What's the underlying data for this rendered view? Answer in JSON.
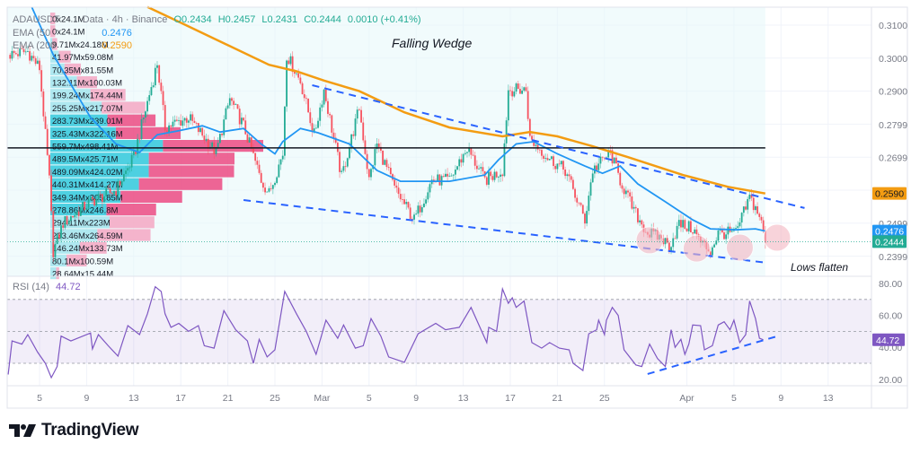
{
  "legend": {
    "symbol": "ADAUSDT",
    "source": "Data · 4h · Binance",
    "open": "O0.2434",
    "high": "H0.2457",
    "low": "L0.2431",
    "close": "C0.2444",
    "change": "0.0010 (+0.41%)",
    "ema50_label": "EMA (50",
    "ema50_value": "0.2476",
    "ema200_label": "EMA (200",
    "ema200_value": "0.2590",
    "rsi_label": "RSI (14)",
    "rsi_value": "44.72"
  },
  "annotations": {
    "wedge": "Falling Wedge",
    "lows": "Lows flatten"
  },
  "branding": {
    "name": "TradingView"
  },
  "colors": {
    "up": "#22ab94",
    "down": "#f7525f",
    "ema50": "#2196f3",
    "ema200": "#f39c12",
    "rsi": "#7e57c2",
    "trendline": "#2962ff",
    "level": "#131722",
    "vp_up": "#26c6da",
    "vp_down": "#ec407a",
    "vp_up_light": "#9fe3ec",
    "vp_down_light": "#f5a3bf",
    "circle": "#f4b6c2"
  },
  "chart_data": {
    "type": "candlestick",
    "timeframe": "4h",
    "price_axis": {
      "ticks": [
        "0.3100",
        "0.3000",
        "0.2900",
        "0.2799",
        "0.2699",
        "0.2399"
      ],
      "hidden_tick": "0.2499"
    },
    "time_axis": {
      "ticks": [
        "5",
        "9",
        "13",
        "17",
        "21",
        "25",
        "Mar",
        "5",
        "9",
        "13",
        "17",
        "21",
        "25",
        "Apr",
        "5",
        "9",
        "13"
      ],
      "tick_dates": [
        "Feb 5",
        "Feb 9",
        "Feb 13",
        "Feb 17",
        "Feb 21",
        "Feb 25",
        "Mar 1",
        "Mar 5",
        "Mar 9",
        "Mar 13",
        "Mar 17",
        "Mar 21",
        "Mar 25",
        "Apr 1",
        "Apr 5",
        "Apr 9",
        "Apr 13"
      ]
    },
    "price_labels": [
      {
        "text": "0.2590",
        "value": 0.259,
        "color": "#f39c12"
      },
      {
        "text": "0.2476",
        "value": 0.2476,
        "color": "#2196f3"
      },
      {
        "text": "0.2444",
        "value": 0.2444,
        "color": "#22ab94"
      }
    ],
    "price_path": [
      [
        "Feb 2 08:00",
        0.301
      ],
      [
        "Feb 4 00:00",
        0.302
      ],
      [
        "Feb 5 00:00",
        0.297
      ],
      [
        "Feb 5 20:00",
        0.263
      ],
      [
        "Feb 6 04:00",
        0.2415
      ],
      [
        "Feb 7 00:00",
        0.25
      ],
      [
        "Feb 9 08:00",
        0.2565
      ],
      [
        "Feb 11 12:00",
        0.26
      ],
      [
        "Feb 13 00:00",
        0.27
      ],
      [
        "Feb 15 00:00",
        0.2985
      ],
      [
        "Feb 15 16:00",
        0.279
      ],
      [
        "Feb 17 16:00",
        0.282
      ],
      [
        "Feb 20 00:00",
        0.2714
      ],
      [
        "Feb 21 04:00",
        0.2877
      ],
      [
        "Feb 22 08:00",
        0.2795
      ],
      [
        "Feb 23 20:00",
        0.263
      ],
      [
        "Feb 24 12:00",
        0.259
      ],
      [
        "Feb 25 16:00",
        0.271
      ],
      [
        "Feb 26 00:00",
        0.301
      ],
      [
        "Feb 27 04:00",
        0.293
      ],
      [
        "Feb 28 08:00",
        0.2768
      ],
      [
        "Mar 1 04:00",
        0.2904
      ],
      [
        "Mar 2 16:00",
        0.264
      ],
      [
        "Mar 4 04:00",
        0.285
      ],
      [
        "Mar 5 00:00",
        0.263
      ],
      [
        "Mar 5 16:00",
        0.2741
      ],
      [
        "Mar 7 04:00",
        0.2605
      ],
      [
        "Mar 8 20:00",
        0.251
      ],
      [
        "Mar 10 08:00",
        0.263
      ],
      [
        "Mar 11 20:00",
        0.263
      ],
      [
        "Mar 13 08:00",
        0.2727
      ],
      [
        "Mar 14 20:00",
        0.263
      ],
      [
        "Mar 16 08:00",
        0.266
      ],
      [
        "Mar 16 20:00",
        0.2904
      ],
      [
        "Mar 18 08:00",
        0.2904
      ],
      [
        "Mar 18 16:00",
        0.2755
      ],
      [
        "Mar 20 04:00",
        0.27
      ],
      [
        "Mar 21 16:00",
        0.266
      ],
      [
        "Mar 23 08:00",
        0.251
      ],
      [
        "Mar 24 00:00",
        0.266
      ],
      [
        "Mar 25 12:00",
        0.2714
      ],
      [
        "Mar 26 08:00",
        0.263
      ],
      [
        "Mar 27 12:00",
        0.2537
      ],
      [
        "Mar 28 16:00",
        0.247
      ],
      [
        "Mar 29 20:00",
        0.2456
      ],
      [
        "Mar 30 12:00",
        0.2429
      ],
      [
        "Mar 31 08:00",
        0.2497
      ],
      [
        "Apr 1 12:00",
        0.2483
      ],
      [
        "Apr 2 04:00",
        0.2442
      ],
      [
        "Apr 3 00:00",
        0.2415
      ],
      [
        "Apr 3 16:00",
        0.247
      ],
      [
        "Apr 5 04:00",
        0.247
      ],
      [
        "Apr 6 08:00",
        0.2578
      ],
      [
        "Apr 7 04:00",
        0.2524
      ],
      [
        "Apr 7 16:00",
        0.2444
      ]
    ],
    "ema50": [
      [
        "Feb 4 08:00",
        0.3155
      ],
      [
        "Feb 6 04:00",
        0.301
      ],
      [
        "Feb 9 08:00",
        0.282
      ],
      [
        "Feb 11 12:00",
        0.274
      ],
      [
        "Feb 13 12:00",
        0.2714
      ],
      [
        "Feb 15 00:00",
        0.2768
      ],
      [
        "Feb 16 20:00",
        0.278
      ],
      [
        "Feb 18 20:00",
        0.2795
      ],
      [
        "Feb 20 08:00",
        0.2776
      ],
      [
        "Feb 22 08:00",
        0.2787
      ],
      [
        "Feb 23 20:00",
        0.274
      ],
      [
        "Feb 25 00:00",
        0.271
      ],
      [
        "Feb 25 16:00",
        0.2747
      ],
      [
        "Feb 27 04:00",
        0.2787
      ],
      [
        "Feb 28 16:00",
        0.2774
      ],
      [
        "Mar 3 08:00",
        0.274
      ],
      [
        "Mar 5 16:00",
        0.266
      ],
      [
        "Mar 7 16:00",
        0.2627
      ],
      [
        "Mar 11 20:00",
        0.2627
      ],
      [
        "Mar 14 20:00",
        0.2646
      ],
      [
        "Mar 16 00:00",
        0.2692
      ],
      [
        "Mar 17 12:00",
        0.274
      ],
      [
        "Mar 19 00:00",
        0.2747
      ],
      [
        "Mar 21 00:00",
        0.271
      ],
      [
        "Mar 23 08:00",
        0.2673
      ],
      [
        "Mar 24 20:00",
        0.2651
      ],
      [
        "Mar 26 08:00",
        0.2673
      ],
      [
        "Mar 27 20:00",
        0.2619
      ],
      [
        "Mar 30 04:00",
        0.2565
      ],
      [
        "Apr 1 12:00",
        0.251
      ],
      [
        "Apr 3 00:00",
        0.2483
      ],
      [
        "Apr 5 04:00",
        0.248
      ],
      [
        "Apr 6 20:00",
        0.2483
      ],
      [
        "Apr 7 16:00",
        0.2476
      ]
    ],
    "ema200": [
      [
        "Feb 14 04:00",
        0.3155
      ],
      [
        "Feb 16 20:00",
        0.311
      ],
      [
        "Feb 20 16:00",
        0.3045
      ],
      [
        "Feb 24 12:00",
        0.298
      ],
      [
        "Feb 26 20:00",
        0.296
      ],
      [
        "Mar 1 04:00",
        0.2932
      ],
      [
        "Mar 4 04:00",
        0.29
      ],
      [
        "Mar 8 00:00",
        0.2836
      ],
      [
        "Mar 11 20:00",
        0.279
      ],
      [
        "Mar 16 08:00",
        0.2763
      ],
      [
        "Mar 18 16:00",
        0.2776
      ],
      [
        "Mar 21 00:00",
        0.2763
      ],
      [
        "Mar 24 00:00",
        0.2733
      ],
      [
        "Mar 27 00:00",
        0.27
      ],
      [
        "Mar 31 16:00",
        0.2646
      ],
      [
        "Apr 4 12:00",
        0.261
      ],
      [
        "Apr 7 16:00",
        0.259
      ]
    ],
    "rsi": {
      "axis_ticks": [
        "80.00",
        "60.00",
        "40.00",
        "20.00"
      ],
      "bands": [
        70,
        50,
        30
      ],
      "series": [
        [
          "Feb 2 08:00",
          23
        ],
        [
          "Feb 2 16:00",
          44
        ],
        [
          "Feb 3 12:00",
          42
        ],
        [
          "Feb 4 00:00",
          48
        ],
        [
          "Feb 4 20:00",
          37
        ],
        [
          "Feb 5 12:00",
          30
        ],
        [
          "Feb 6 00:00",
          21
        ],
        [
          "Feb 6 12:00",
          28
        ],
        [
          "Feb 6 20:00",
          47
        ],
        [
          "Feb 7 16:00",
          44
        ],
        [
          "Feb 9 08:00",
          49
        ],
        [
          "Feb 9 12:00",
          39
        ],
        [
          "Feb 10 00:00",
          48
        ],
        [
          "Feb 10 20:00",
          41
        ],
        [
          "Feb 11 16:00",
          34.5
        ],
        [
          "Feb 12 12:00",
          53.6
        ],
        [
          "Feb 13 12:00",
          48
        ],
        [
          "Feb 14 04:00",
          61
        ],
        [
          "Feb 14 20:00",
          78
        ],
        [
          "Feb 15 08:00",
          75
        ],
        [
          "Feb 15 16:00",
          61
        ],
        [
          "Feb 16 04:00",
          52.5
        ],
        [
          "Feb 16 20:00",
          55
        ],
        [
          "Feb 17 16:00",
          50
        ],
        [
          "Feb 18 12:00",
          53.6
        ],
        [
          "Feb 19 00:00",
          41
        ],
        [
          "Feb 19 20:00",
          39.5
        ],
        [
          "Feb 20 16:00",
          63
        ],
        [
          "Feb 21 16:00",
          51
        ],
        [
          "Feb 22 16:00",
          44
        ],
        [
          "Feb 23 04:00",
          30
        ],
        [
          "Feb 23 16:00",
          45
        ],
        [
          "Feb 24 08:00",
          34
        ],
        [
          "Feb 25 00:00",
          38.5
        ],
        [
          "Feb 25 20:00",
          75
        ],
        [
          "Feb 26 20:00",
          61
        ],
        [
          "Feb 27 16:00",
          50
        ],
        [
          "Feb 28 12:00",
          35.6
        ],
        [
          "Mar 1 08:00",
          57
        ],
        [
          "Mar 2 08:00",
          45.7
        ],
        [
          "Mar 2 20:00",
          54
        ],
        [
          "Mar 3 20:00",
          39.5
        ],
        [
          "Mar 4 12:00",
          41
        ],
        [
          "Mar 5 04:00",
          58
        ],
        [
          "Mar 6 00:00",
          47
        ],
        [
          "Mar 6 16:00",
          34
        ],
        [
          "Mar 8 00:00",
          30.6
        ],
        [
          "Mar 9 04:00",
          48.5
        ],
        [
          "Mar 10 16:00",
          55
        ],
        [
          "Mar 11 12:00",
          51
        ],
        [
          "Mar 12 16:00",
          52.5
        ],
        [
          "Mar 13 16:00",
          65
        ],
        [
          "Mar 15 00:00",
          43
        ],
        [
          "Mar 15 04:00",
          52.5
        ],
        [
          "Mar 15 20:00",
          50
        ],
        [
          "Mar 16 08:00",
          76.6
        ],
        [
          "Mar 16 20:00",
          67.6
        ],
        [
          "Mar 17 04:00",
          71
        ],
        [
          "Mar 17 12:00",
          65
        ],
        [
          "Mar 18 04:00",
          69
        ],
        [
          "Mar 18 20:00",
          43
        ],
        [
          "Mar 19 16:00",
          39.5
        ],
        [
          "Mar 20 08:00",
          43
        ],
        [
          "Mar 21 04:00",
          39.5
        ],
        [
          "Mar 22 00:00",
          38.4
        ],
        [
          "Mar 22 08:00",
          30
        ],
        [
          "Mar 23 04:00",
          25.5
        ],
        [
          "Mar 23 16:00",
          48.5
        ],
        [
          "Mar 24 08:00",
          51
        ],
        [
          "Mar 24 12:00",
          57
        ],
        [
          "Mar 25 00:00",
          48
        ],
        [
          "Mar 25 04:00",
          57
        ],
        [
          "Mar 25 16:00",
          65
        ],
        [
          "Mar 26 04:00",
          60
        ],
        [
          "Mar 26 16:00",
          38.4
        ],
        [
          "Mar 27 16:00",
          29
        ],
        [
          "Mar 28 04:00",
          28
        ],
        [
          "Mar 28 20:00",
          42
        ],
        [
          "Mar 29 12:00",
          33
        ],
        [
          "Mar 30 04:00",
          28
        ],
        [
          "Mar 30 16:00",
          51
        ],
        [
          "Mar 31 00:00",
          40
        ],
        [
          "Mar 31 12:00",
          45
        ],
        [
          "Mar 31 20:00",
          35.6
        ],
        [
          "Apr 1 04:00",
          42
        ],
        [
          "Apr 1 12:00",
          54
        ],
        [
          "Apr 2 04:00",
          53.6
        ],
        [
          "Apr 2 12:00",
          38.4
        ],
        [
          "Apr 3 04:00",
          41
        ],
        [
          "Apr 3 16:00",
          54
        ],
        [
          "Apr 4 04:00",
          56
        ],
        [
          "Apr 4 16:00",
          51
        ],
        [
          "Apr 5 00:00",
          57
        ],
        [
          "Apr 5 12:00",
          43
        ],
        [
          "Apr 6 00:00",
          48
        ],
        [
          "Apr 6 08:00",
          69
        ],
        [
          "Apr 6 20:00",
          58
        ],
        [
          "Apr 7 04:00",
          45.7
        ],
        [
          "Apr 7 12:00",
          44.72
        ]
      ],
      "trendline": [
        [
          "Mar 28 16:00",
          23.3
        ],
        [
          "Apr 8 16:00",
          46.9
        ]
      ]
    },
    "drawings": {
      "horizontal_level": 0.2728,
      "wedge_upper": [
        [
          "Feb 28 04:00",
          0.2918
        ],
        [
          "Apr 11 00:00",
          0.2546
        ]
      ],
      "wedge_lower": [
        [
          "Feb 22 08:00",
          0.257
        ],
        [
          "Apr 7 20:00",
          0.238
        ]
      ],
      "circles": [
        [
          "Mar 28 20:00",
          0.2448
        ],
        [
          "Apr 1 20:00",
          0.2423
        ],
        [
          "Apr 5 12:00",
          0.2426
        ],
        [
          "Apr 8 16:00",
          0.2456
        ]
      ]
    },
    "volume_profile": [
      {
        "label": "0x24.1M",
        "up": 0,
        "down": 24.1,
        "value_area": false
      },
      {
        "label": "0x24.1M",
        "up": 0,
        "down": 24.1,
        "value_area": false
      },
      {
        "label": "9.71Mx24.18M",
        "up": 9.71,
        "down": 24.18,
        "value_area": false
      },
      {
        "label": "41.97Mx59.08M",
        "up": 41.97,
        "down": 59.08,
        "value_area": false
      },
      {
        "label": "70.35Mx81.55M",
        "up": 70.35,
        "down": 81.55,
        "value_area": false
      },
      {
        "label": "132.11Mx100.03M",
        "up": 132.11,
        "down": 100.03,
        "value_area": false
      },
      {
        "label": "199.24Mx174.44M",
        "up": 199.24,
        "down": 174.44,
        "value_area": false
      },
      {
        "label": "255.25Mx217.07M",
        "up": 255.25,
        "down": 217.07,
        "value_area": false
      },
      {
        "label": "283.73Mx239.01M",
        "up": 283.73,
        "down": 239.01,
        "value_area": true
      },
      {
        "label": "325.43Mx322.16M",
        "up": 325.43,
        "down": 322.16,
        "value_area": true
      },
      {
        "label": "559.7Mx498.41M",
        "up": 559.7,
        "down": 498.41,
        "value_area": true
      },
      {
        "label": "489.5Mx425.71M",
        "up": 489.5,
        "down": 425.71,
        "value_area": true
      },
      {
        "label": "489.09Mx424.02M",
        "up": 489.09,
        "down": 424.02,
        "value_area": true
      },
      {
        "label": "440.31Mx414.27M",
        "up": 440.31,
        "down": 414.27,
        "value_area": true
      },
      {
        "label": "349.34Mx305.85M",
        "up": 349.34,
        "down": 305.85,
        "value_area": true
      },
      {
        "label": "278.86Mx246.8M",
        "up": 278.86,
        "down": 246.8,
        "value_area": true
      },
      {
        "label": "294.11Mx223M",
        "up": 294.11,
        "down": 223,
        "value_area": false
      },
      {
        "label": "233.46Mx264.59M",
        "up": 233.46,
        "down": 264.59,
        "value_area": false
      },
      {
        "label": "146.24Mx133.73M",
        "up": 146.24,
        "down": 133.73,
        "value_area": false
      },
      {
        "label": "80.1Mx100.59M",
        "up": 80.1,
        "down": 100.59,
        "value_area": false
      },
      {
        "label": "28.64Mx15.44M",
        "up": 28.64,
        "down": 15.44,
        "value_area": false
      }
    ]
  }
}
